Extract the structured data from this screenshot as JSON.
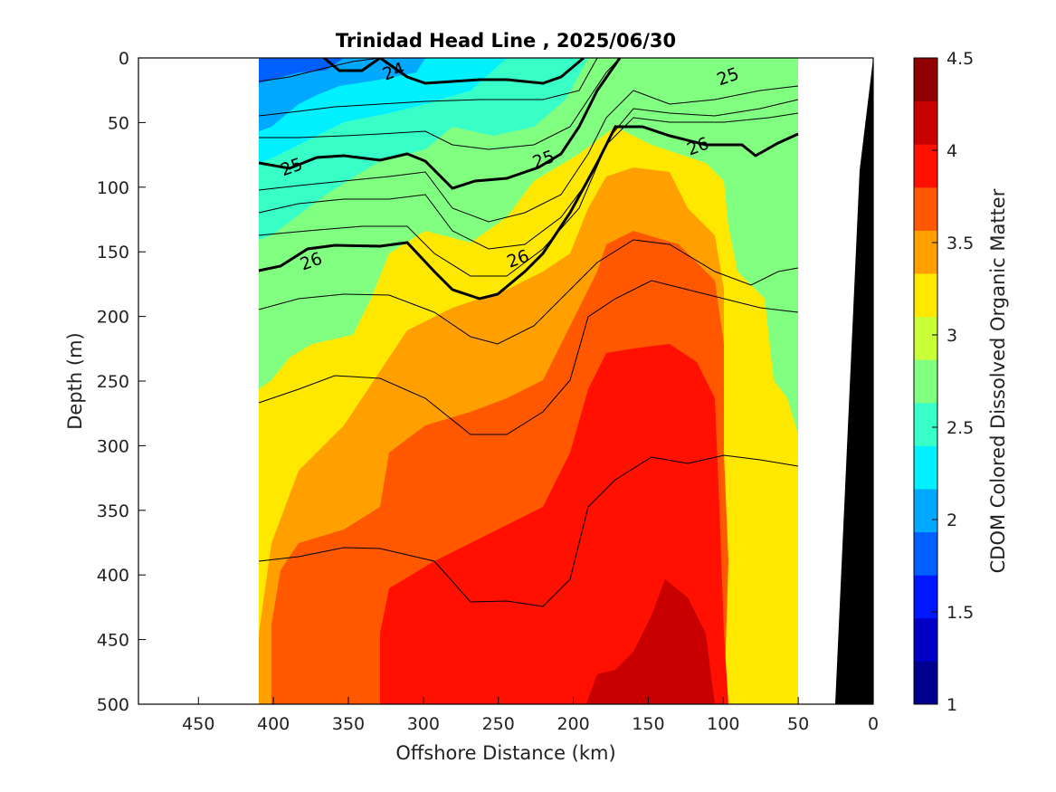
{
  "chart_data": {
    "type": "heatmap",
    "title": "Trinidad Head Line , 2025/06/30",
    "xlabel": "Offshore Distance (km)",
    "ylabel": "Depth (m)",
    "colorbar_label": "CDOM Colored Dissolved Organic Matter",
    "xlim": [
      490,
      0
    ],
    "ylim": [
      500,
      0
    ],
    "x_reversed": true,
    "y_reversed": true,
    "x_ticks": [
      "450",
      "400",
      "350",
      "300",
      "250",
      "200",
      "150",
      "100",
      "50",
      "0"
    ],
    "y_ticks": [
      "0",
      "50",
      "100",
      "150",
      "200",
      "250",
      "300",
      "350",
      "400",
      "450",
      "500"
    ],
    "colorbar_ticks": [
      "1",
      "1.5",
      "2",
      "2.5",
      "3",
      "3.5",
      "4",
      "4.5"
    ],
    "color_range": [
      1,
      4.5
    ],
    "data_extent_km": [
      410,
      50
    ],
    "colors": {
      "levels": [
        "#000090",
        "#0000c8",
        "#0018ff",
        "#0060ff",
        "#00a8ff",
        "#00f0ff",
        "#38ffc8",
        "#80ff80",
        "#c8ff38",
        "#ffe800",
        "#ffa000",
        "#ff5800",
        "#ff1000",
        "#c80000",
        "#900000"
      ],
      "seafloor": "#000000"
    },
    "contour_labels": [
      {
        "text": "24",
        "x": 320,
        "y": 10
      },
      {
        "text": "25",
        "x": 388,
        "y": 84
      },
      {
        "text": "25",
        "x": 220,
        "y": 78
      },
      {
        "text": "25",
        "x": 97,
        "y": 14
      },
      {
        "text": "26",
        "x": 375,
        "y": 157
      },
      {
        "text": "26",
        "x": 237,
        "y": 155
      },
      {
        "text": "26",
        "x": 117,
        "y": 68
      }
    ]
  }
}
